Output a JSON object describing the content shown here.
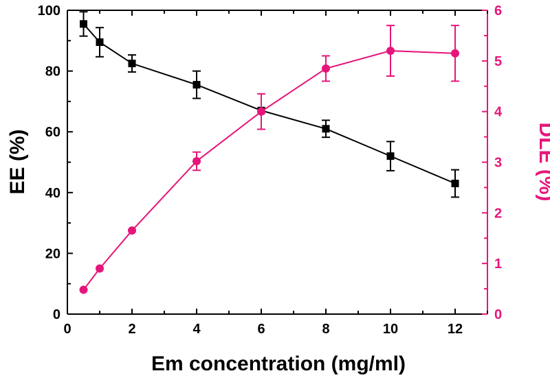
{
  "chart_data": {
    "type": "line",
    "xlabel": "Em concentration (mg/ml)",
    "ylabel": "EE (%)",
    "y2label": "DLE (%)",
    "xlim": [
      0,
      13
    ],
    "ylim": [
      0,
      100
    ],
    "y2lim": [
      0,
      6
    ],
    "xticks": [
      0,
      2,
      4,
      6,
      8,
      10,
      12
    ],
    "yticks": [
      0,
      20,
      40,
      60,
      80,
      100
    ],
    "y2ticks": [
      0,
      1,
      2,
      3,
      4,
      5,
      6
    ],
    "grid": false,
    "series": [
      {
        "axis": "left",
        "color": "#000000",
        "marker": "square",
        "x": [
          0.5,
          1,
          2,
          4,
          6,
          8,
          10,
          12
        ],
        "y": [
          95.5,
          89.5,
          82.5,
          75.5,
          67,
          61,
          52,
          43
        ],
        "error": [
          4,
          4.8,
          2.8,
          4.5,
          0,
          2.8,
          4.8,
          4.5
        ]
      },
      {
        "axis": "right",
        "color": "#e6157a",
        "marker": "circle",
        "x": [
          0.5,
          1,
          2,
          4,
          6,
          8,
          10,
          12
        ],
        "y": [
          0.48,
          0.9,
          1.65,
          3.02,
          4.0,
          4.85,
          5.2,
          5.15
        ],
        "error": [
          0,
          0,
          0,
          0.18,
          0.35,
          0.25,
          0.5,
          0.55
        ]
      }
    ]
  }
}
